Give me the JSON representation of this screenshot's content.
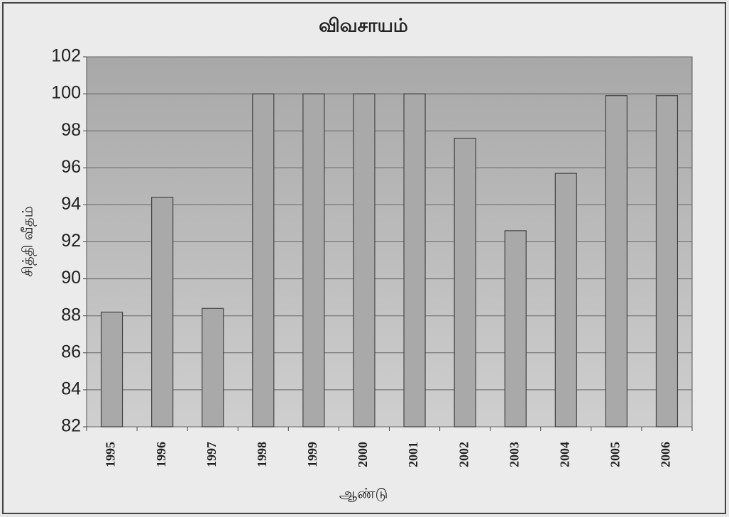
{
  "chart_data": {
    "type": "bar",
    "title": "விவசாயம்",
    "x_label": "ஆண்டு",
    "y_label": "சித்தி வீதம்",
    "categories": [
      "1995",
      "1996",
      "1997",
      "1998",
      "1999",
      "2000",
      "2001",
      "2002",
      "2003",
      "2004",
      "2005",
      "2006"
    ],
    "values": [
      88.2,
      94.4,
      88.4,
      100,
      100,
      100,
      100,
      97.6,
      92.6,
      95.7,
      99.9,
      99.9
    ],
    "color": "#a9a9a9",
    "ylim": [
      82,
      102
    ],
    "yticks": [
      82,
      84,
      86,
      88,
      90,
      92,
      94,
      96,
      98,
      100,
      102
    ],
    "grid": true
  }
}
